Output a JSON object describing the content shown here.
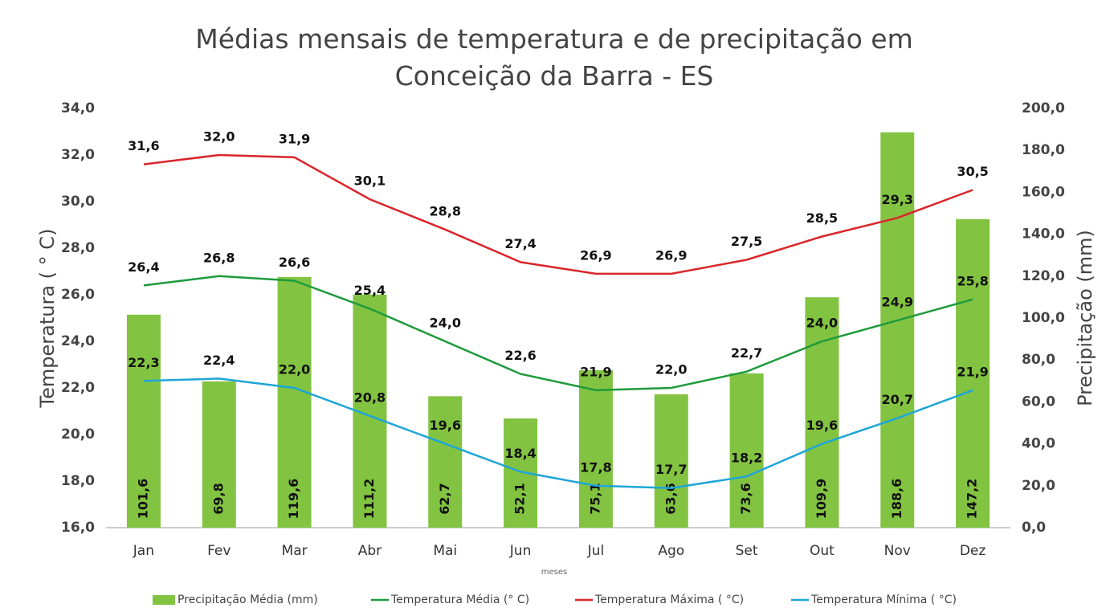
{
  "chart_data": {
    "type": "combo",
    "title": "Médias mensais de temperatura e de precipitação em Conceição da Barra - ES",
    "xlabel": "meses",
    "ylabel": "Temperatura ( ° C)",
    "y2label": "Precipitação (mm)",
    "categories": [
      "Jan",
      "Fev",
      "Mar",
      "Abr",
      "Mai",
      "Jun",
      "Jul",
      "Ago",
      "Set",
      "Out",
      "Nov",
      "Dez"
    ],
    "ylim": [
      16,
      34
    ],
    "yticks": [
      {
        "value": 16,
        "label": "16,0"
      },
      {
        "value": 18,
        "label": "18,0"
      },
      {
        "value": 20,
        "label": "20,0"
      },
      {
        "value": 22,
        "label": "22,0"
      },
      {
        "value": 24,
        "label": "24,0"
      },
      {
        "value": 26,
        "label": "26,0"
      },
      {
        "value": 28,
        "label": "28,0"
      },
      {
        "value": 30,
        "label": "30,0"
      },
      {
        "value": 32,
        "label": "32,0"
      },
      {
        "value": 34,
        "label": "34,0"
      }
    ],
    "y2lim": [
      0,
      200
    ],
    "y2ticks": [
      {
        "value": 0,
        "label": "0,0"
      },
      {
        "value": 20,
        "label": "20,0"
      },
      {
        "value": 40,
        "label": "40,0"
      },
      {
        "value": 60,
        "label": "60,0"
      },
      {
        "value": 80,
        "label": "80,0"
      },
      {
        "value": 100,
        "label": "100,0"
      },
      {
        "value": 120,
        "label": "120,0"
      },
      {
        "value": 140,
        "label": "140,0"
      },
      {
        "value": 160,
        "label": "160,0"
      },
      {
        "value": 180,
        "label": "180,0"
      },
      {
        "value": 200,
        "label": "200,0"
      }
    ],
    "legend": "bottom",
    "series": [
      {
        "name": "Precipitação Média (mm)",
        "type": "bar",
        "axis": "y2",
        "color": "#82c341",
        "values": [
          101.6,
          69.8,
          119.6,
          111.2,
          62.7,
          52.1,
          75.1,
          63.6,
          73.6,
          109.9,
          188.6,
          147.2
        ],
        "value_labels": [
          "101,6",
          "69,8",
          "119,6",
          "111,2",
          "62,7",
          "52,1",
          "75,1",
          "63,6",
          "73,6",
          "109,9",
          "188,6",
          "147,2"
        ]
      },
      {
        "name": "Temperatura Média (° C)",
        "type": "line",
        "color": "#1e9a3c",
        "values": [
          26.4,
          26.8,
          26.6,
          25.4,
          24.0,
          22.6,
          21.9,
          22.0,
          22.7,
          24.0,
          24.9,
          25.8
        ],
        "value_labels": [
          "26,4",
          "26,8",
          "26,6",
          "25,4",
          "24,0",
          "22,6",
          "21,9",
          "22,0",
          "22,7",
          "24,0",
          "24,9",
          "25,8"
        ]
      },
      {
        "name": "Temperatura Máxima ( °C)",
        "type": "line",
        "color": "#d9262b",
        "values": [
          31.6,
          32.0,
          31.9,
          30.1,
          28.8,
          27.4,
          26.9,
          26.9,
          27.5,
          28.5,
          29.3,
          30.5
        ],
        "value_labels": [
          "31,6",
          "32,0",
          "31,9",
          "30,1",
          "28,8",
          "27,4",
          "26,9",
          "26,9",
          "27,5",
          "28,5",
          "29,3",
          "30,5"
        ]
      },
      {
        "name": "Temperatura Mínima ( °C)",
        "type": "line",
        "color": "#1ea5d8",
        "values": [
          22.3,
          22.4,
          22.0,
          20.8,
          19.6,
          18.4,
          17.8,
          17.7,
          18.2,
          19.6,
          20.7,
          21.9
        ],
        "value_labels": [
          "22,3",
          "22,4",
          "22,0",
          "20,8",
          "19,6",
          "18,4",
          "17,8",
          "17,7",
          "18,2",
          "19,6",
          "20,7",
          "21,9"
        ]
      }
    ]
  }
}
